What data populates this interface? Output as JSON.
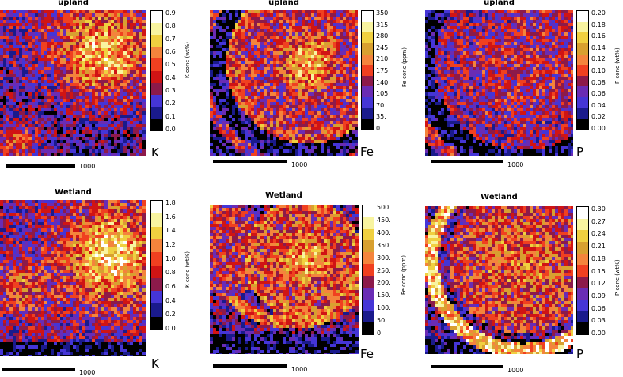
{
  "colorscale": [
    "#000000",
    "#1a1a8c",
    "#4535d6",
    "#6a2cb4",
    "#8c1a4a",
    "#d01414",
    "#f04020",
    "#f4843c",
    "#d8a030",
    "#f0d040",
    "#f8f4a0",
    "#ffffff"
  ],
  "panels": [
    {
      "title": "upland",
      "element": "K",
      "unit_label": "K conc (wt%)",
      "scale_label": "1000",
      "ticks": [
        "0.9",
        "0.8",
        "0.7",
        "0.6",
        "0.5",
        "0.4",
        "0.3",
        "0.2",
        "0.1",
        "0.0"
      ]
    },
    {
      "title": "upland",
      "element": "Fe",
      "unit_label": "Fe conc (ppm)",
      "scale_label": "1000",
      "ticks": [
        "350.",
        "315.",
        "280.",
        "245.",
        "210.",
        "175.",
        "140.",
        "105.",
        "70.",
        "35.",
        "0."
      ]
    },
    {
      "title": "upland",
      "element": "P",
      "unit_label": "P conc (wt%)",
      "scale_label": "1000",
      "ticks": [
        "0.20",
        "0.18",
        "0.16",
        "0.14",
        "0.12",
        "0.10",
        "0.08",
        "0.06",
        "0.04",
        "0.02",
        "0.00"
      ]
    },
    {
      "title": "Wetland",
      "element": "K",
      "unit_label": "K conc (wt%)",
      "scale_label": "1000",
      "ticks": [
        "1.8",
        "1.6",
        "1.4",
        "1.2",
        "1.0",
        "0.8",
        "0.6",
        "0.4",
        "0.2",
        "0.0"
      ]
    },
    {
      "title": "Wetland",
      "element": "Fe",
      "unit_label": "Fe conc (ppm)",
      "scale_label": "1000",
      "ticks": [
        "500.",
        "450.",
        "400.",
        "350.",
        "300.",
        "250.",
        "200.",
        "150.",
        "100.",
        "50.",
        "0."
      ]
    },
    {
      "title": "Wetland",
      "element": "P",
      "unit_label": "P conc (wt%)",
      "scale_label": "1000",
      "ticks": [
        "0.30",
        "0.27",
        "0.24",
        "0.21",
        "0.18",
        "0.15",
        "0.12",
        "0.09",
        "0.06",
        "0.03",
        "0.00"
      ]
    }
  ]
}
